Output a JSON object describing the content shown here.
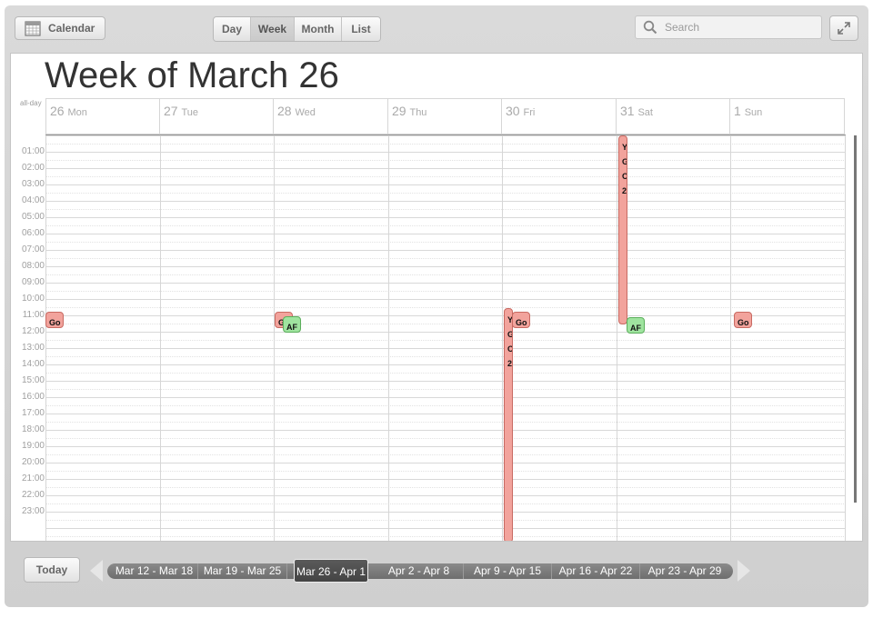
{
  "toolbar": {
    "calendar_label": "Calendar",
    "views": [
      "Day",
      "Week",
      "Month",
      "List"
    ],
    "active_view": "Week",
    "search_placeholder": "Search"
  },
  "calendar": {
    "title": "Week of March 26",
    "allday_label": "all-day",
    "days": [
      {
        "num": "26",
        "name": "Mon"
      },
      {
        "num": "27",
        "name": "Tue"
      },
      {
        "num": "28",
        "name": "Wed"
      },
      {
        "num": "29",
        "name": "Thu"
      },
      {
        "num": "30",
        "name": "Fri"
      },
      {
        "num": "31",
        "name": "Sat"
      },
      {
        "num": "1",
        "name": "Sun"
      }
    ],
    "hours": [
      "01:00",
      "02:00",
      "03:00",
      "04:00",
      "05:00",
      "06:00",
      "07:00",
      "08:00",
      "09:00",
      "10:00",
      "11:00",
      "12:00",
      "13:00",
      "14:00",
      "15:00",
      "16:00",
      "17:00",
      "18:00",
      "19:00",
      "20:00",
      "21:00",
      "22:00",
      "23:00"
    ],
    "events": {
      "mon_go": "Go",
      "wed_go": "Go",
      "wed_af": "AF",
      "fri_tall": [
        "Y",
        "G",
        "C",
        "2"
      ],
      "fri_go": "Go",
      "sat_tall": [
        "Y",
        "G",
        "C",
        "2"
      ],
      "sat_af": "AF",
      "sun_go": "Go"
    },
    "colors": {
      "event_red": "#f2a39c",
      "event_green": "#9fe49f"
    }
  },
  "nav": {
    "today_label": "Today",
    "ranges": [
      "Mar 12 - Mar 18",
      "Mar 19 - Mar 25",
      "Mar 26 - Apr 1",
      "Apr 2 - Apr 8",
      "Apr 9 - Apr 15",
      "Apr 16 - Apr 22",
      "Apr 23 - Apr 29"
    ],
    "active_range": "Mar 26 - Apr 1"
  }
}
